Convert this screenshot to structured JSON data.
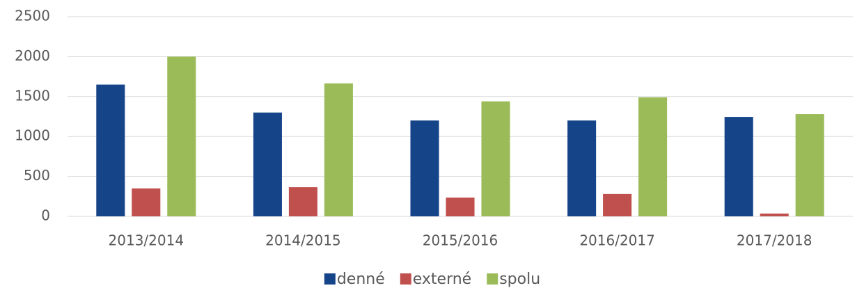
{
  "chart_data": {
    "type": "bar",
    "categories": [
      "2013/2014",
      "2014/2015",
      "2015/2016",
      "2016/2017",
      "2017/2018"
    ],
    "series": [
      {
        "name": "denné",
        "color": "#154489",
        "values": [
          1650,
          1300,
          1200,
          1200,
          1245
        ]
      },
      {
        "name": "externé",
        "color": "#c0504d",
        "values": [
          350,
          365,
          235,
          280,
          35
        ]
      },
      {
        "name": "spolu",
        "color": "#9bbb59",
        "values": [
          2000,
          1665,
          1440,
          1490,
          1280
        ]
      }
    ],
    "ylim": [
      0,
      2500
    ],
    "yticks": [
      0,
      500,
      1000,
      1500,
      2000,
      2500
    ],
    "grid": true,
    "legend": "bottom"
  }
}
